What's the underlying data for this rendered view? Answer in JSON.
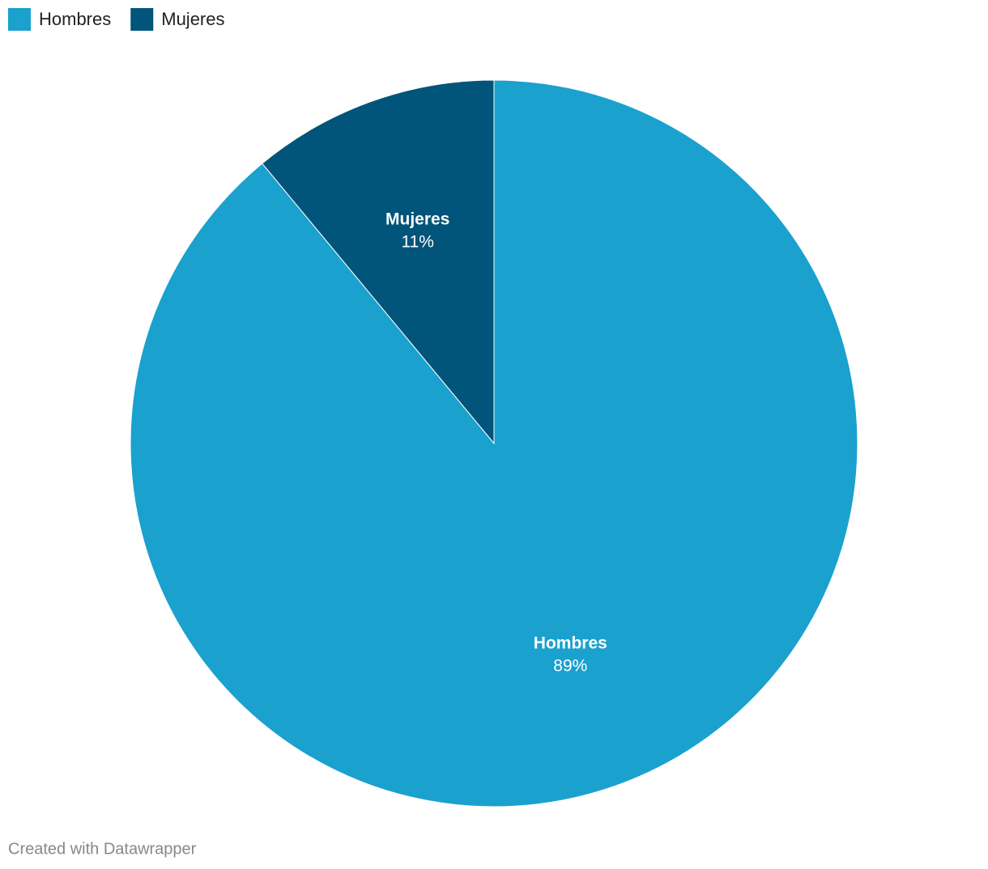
{
  "chart_data": {
    "type": "pie",
    "categories": [
      "Hombres",
      "Mujeres"
    ],
    "values": [
      89,
      11
    ],
    "value_labels": [
      "89%",
      "11%"
    ],
    "colors": [
      "#1aa1ce",
      "#01547a"
    ],
    "legend": "top-left",
    "source": "Created with Datawrapper"
  }
}
